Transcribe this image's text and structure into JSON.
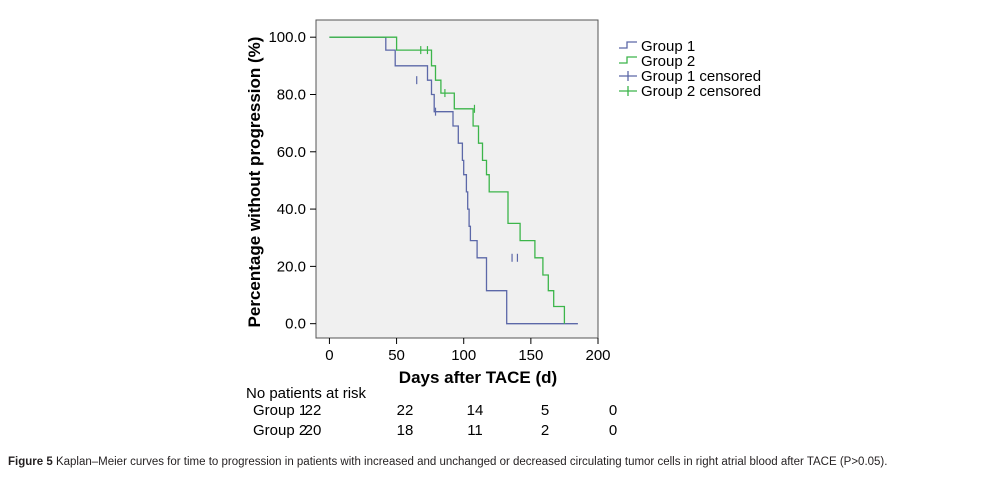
{
  "chart_data": {
    "type": "line",
    "xlabel": "Days after TACE (d)",
    "ylabel": "Percentage without progression (%)",
    "xlim": [
      -10,
      200
    ],
    "ylim": [
      -5,
      106
    ],
    "xticks": [
      "0",
      "50",
      "100",
      "150",
      "200"
    ],
    "yticks": [
      "0.0",
      "20.0",
      "40.0",
      "60.0",
      "80.0",
      "100.0"
    ],
    "legend_position": "top-right, outside plot",
    "background": "#f0f0f0",
    "series": [
      {
        "name": "Group 1",
        "color": "#5c68a8",
        "step": true,
        "x": [
          0,
          40,
          42,
          42,
          49,
          49,
          73,
          73,
          76,
          76,
          78,
          78,
          92,
          92,
          96,
          96,
          99,
          99,
          100,
          100,
          102,
          102,
          103,
          103,
          104,
          104,
          105,
          105,
          110,
          110,
          112,
          112,
          117,
          117,
          132,
          132,
          152,
          152,
          166,
          166,
          185,
          185
        ],
        "y": [
          100,
          100,
          100,
          95.5,
          95.5,
          90,
          90,
          85,
          85,
          80,
          80,
          74,
          74,
          69,
          69,
          63,
          63,
          57,
          57,
          52,
          52,
          46,
          46,
          40,
          40,
          34,
          34,
          29,
          29,
          23,
          23,
          23,
          23,
          11.5,
          11.5,
          0,
          0,
          0,
          0,
          0,
          0,
          0
        ],
        "censored": [
          {
            "x": 65,
            "y": 85
          },
          {
            "x": 79,
            "y": 74
          },
          {
            "x": 136,
            "y": 23
          },
          {
            "x": 140,
            "y": 23
          }
        ]
      },
      {
        "name": "Group 2",
        "color": "#3cb54a",
        "step": true,
        "x": [
          0,
          50,
          50,
          76,
          76,
          79,
          79,
          83,
          83,
          93,
          93,
          107,
          107,
          111,
          111,
          114,
          114,
          117,
          117,
          119,
          119,
          133,
          133,
          142,
          142,
          153,
          153,
          159,
          159,
          163,
          163,
          167,
          167,
          175,
          175
        ],
        "y": [
          100,
          100,
          95.5,
          95.5,
          90,
          90,
          85,
          85,
          80.5,
          80.5,
          75,
          75,
          69,
          69,
          63,
          63,
          57,
          57,
          52,
          52,
          46,
          46,
          35,
          35,
          29,
          29,
          23,
          23,
          17,
          17,
          11.5,
          11.5,
          6,
          6,
          0
        ],
        "censored": [
          {
            "x": 68,
            "y": 95.5
          },
          {
            "x": 73,
            "y": 95.5
          },
          {
            "x": 86,
            "y": 80.5
          },
          {
            "x": 108,
            "y": 75
          }
        ]
      }
    ],
    "legend": [
      {
        "label": "Group 1",
        "kind": "line",
        "color": "#5c68a8"
      },
      {
        "label": "Group 2",
        "kind": "line",
        "color": "#3cb54a"
      },
      {
        "label": "Group 1 censored",
        "kind": "censor",
        "color": "#5c68a8"
      },
      {
        "label": "Group 2 censored",
        "kind": "censor",
        "color": "#3cb54a"
      }
    ]
  },
  "risk_table": {
    "title": "No patients at risk",
    "rows": [
      {
        "label": "Group 1",
        "values": [
          "22",
          "22",
          "14",
          "5",
          "0"
        ]
      },
      {
        "label": "Group 2",
        "values": [
          "20",
          "18",
          "11",
          "2",
          "0"
        ]
      }
    ]
  },
  "caption": {
    "label": "Figure 5",
    "text": "Kaplan–Meier curves for time to progression in patients with increased and unchanged or decreased circulating tumor cells in right atrial blood after TACE (P>0.05)."
  }
}
